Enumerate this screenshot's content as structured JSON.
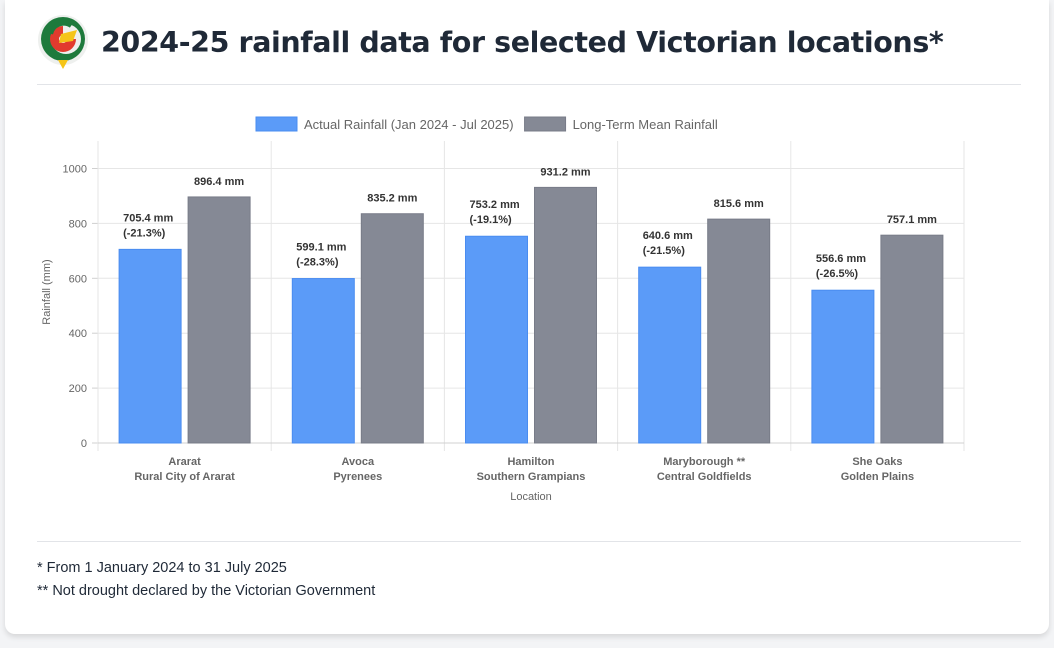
{
  "header": {
    "title": "2024-25 rainfall data for selected Victorian locations*",
    "logo_icon": "victoria-drought-logo"
  },
  "chart_data": {
    "type": "bar",
    "title": "",
    "categories": [
      [
        "Ararat",
        "Rural City of Ararat"
      ],
      [
        "Avoca",
        "Pyrenees"
      ],
      [
        "Hamilton",
        "Southern Grampians"
      ],
      [
        "Maryborough **",
        "Central Goldfields"
      ],
      [
        "She Oaks",
        "Golden Plains"
      ]
    ],
    "series": [
      {
        "name": "Actual Rainfall (Jan 2024 - Jul 2025)",
        "color": "#5b9bf8",
        "values": [
          705.4,
          599.1,
          753.2,
          640.6,
          556.6
        ],
        "labels": [
          [
            "705.4 mm",
            "(-21.3%)"
          ],
          [
            "599.1 mm",
            "(-28.3%)"
          ],
          [
            "753.2 mm",
            "(-19.1%)"
          ],
          [
            "640.6 mm",
            "(-21.5%)"
          ],
          [
            "556.6 mm",
            "(-26.5%)"
          ]
        ]
      },
      {
        "name": "Long-Term Mean Rainfall",
        "color": "#858995",
        "values": [
          896.4,
          835.2,
          931.2,
          815.6,
          757.1
        ],
        "labels": [
          [
            "896.4 mm"
          ],
          [
            "835.2 mm"
          ],
          [
            "931.2 mm"
          ],
          [
            "815.6 mm"
          ],
          [
            "757.1 mm"
          ]
        ]
      }
    ],
    "xlabel": "Location",
    "ylabel": "Rainfall (mm)",
    "ylim": [
      0,
      1100
    ],
    "yticks": [
      0,
      200,
      400,
      600,
      800,
      1000
    ],
    "grid": true,
    "legend": "top-center"
  },
  "footnotes": [
    "* From 1 January 2024 to 31 July 2025",
    "** Not drought declared by the Victorian Government"
  ]
}
